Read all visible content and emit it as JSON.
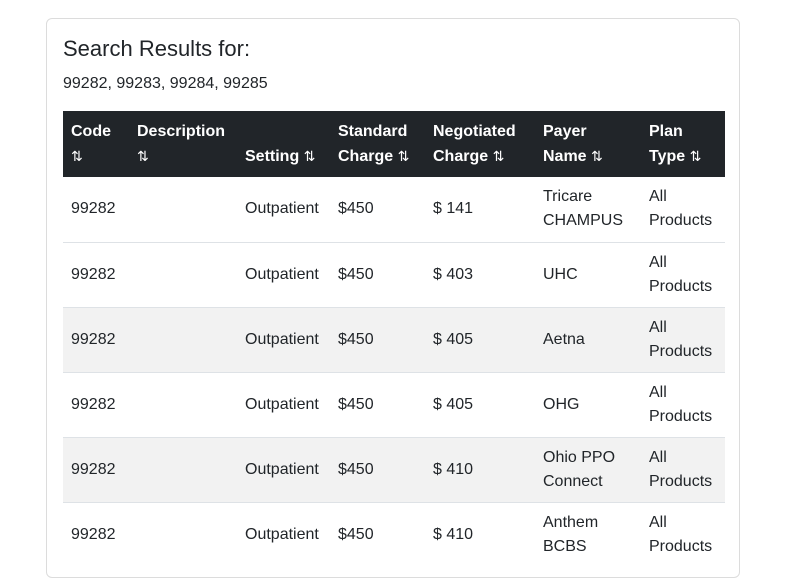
{
  "header": {
    "title": "Search Results for:",
    "codes": "99282, 99283, 99284, 99285"
  },
  "table": {
    "columns": [
      {
        "label": "Code",
        "sort_icon": "⇅"
      },
      {
        "label": "Description",
        "sort_icon": "⇅"
      },
      {
        "label": "Setting",
        "sort_icon": "⇅"
      },
      {
        "label": "Standard Charge",
        "sort_icon": "⇅"
      },
      {
        "label": "Negotiated Charge",
        "sort_icon": "⇅"
      },
      {
        "label": "Payer Name",
        "sort_icon": "⇅"
      },
      {
        "label": "Plan Type",
        "sort_icon": "⇅"
      }
    ],
    "rows": [
      {
        "code": "99282",
        "description": "",
        "setting": "Outpatient",
        "standard": "$450",
        "negotiated": "$ 141",
        "payer": "Tricare CHAMPUS",
        "plan": "All Products"
      },
      {
        "code": "99282",
        "description": "",
        "setting": "Outpatient",
        "standard": "$450",
        "negotiated": "$ 403",
        "payer": "UHC",
        "plan": "All Products"
      },
      {
        "code": "99282",
        "description": "",
        "setting": "Outpatient",
        "standard": "$450",
        "negotiated": "$ 405",
        "payer": "Aetna",
        "plan": "All Products"
      },
      {
        "code": "99282",
        "description": "",
        "setting": "Outpatient",
        "standard": "$450",
        "negotiated": "$ 405",
        "payer": "OHG",
        "plan": "All Products"
      },
      {
        "code": "99282",
        "description": "",
        "setting": "Outpatient",
        "standard": "$450",
        "negotiated": "$ 410",
        "payer": "Ohio PPO Connect",
        "plan": "All Products"
      },
      {
        "code": "99282",
        "description": "",
        "setting": "Outpatient",
        "standard": "$450",
        "negotiated": "$ 410",
        "payer": "Anthem BCBS",
        "plan": "All Products"
      }
    ]
  },
  "colors": {
    "header_bg": "#212529",
    "stripe_bg": "#f2f2f2",
    "text": "#212529"
  }
}
